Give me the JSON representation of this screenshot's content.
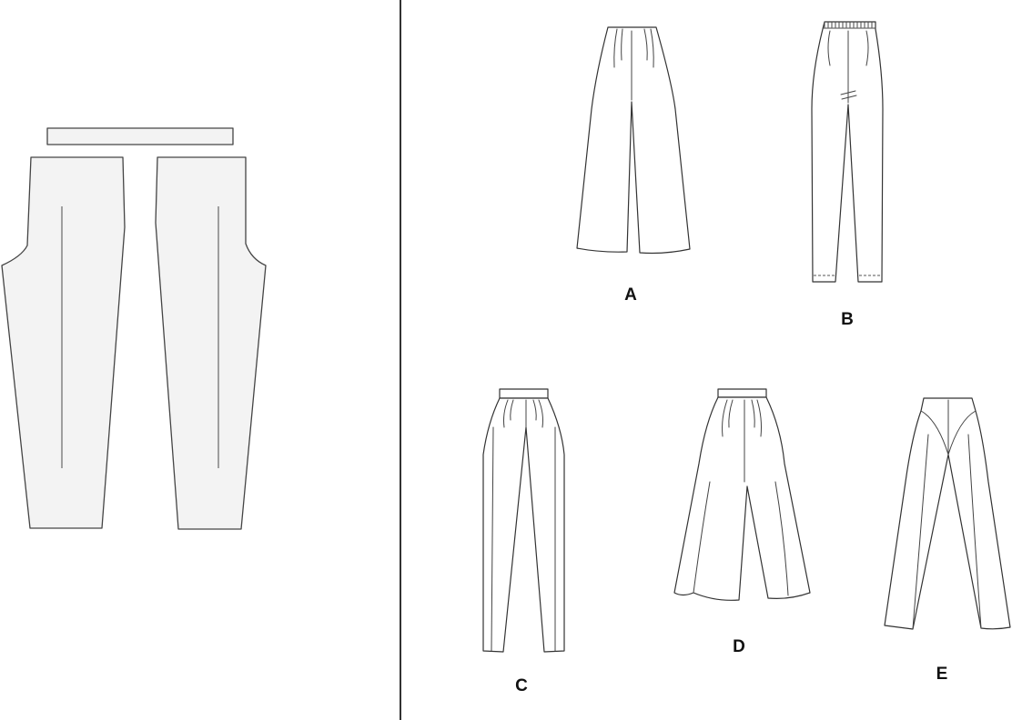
{
  "views": [
    {
      "id": "A",
      "label": "A"
    },
    {
      "id": "B",
      "label": "B"
    },
    {
      "id": "C",
      "label": "C"
    },
    {
      "id": "D",
      "label": "D"
    },
    {
      "id": "E",
      "label": "E"
    }
  ],
  "colors": {
    "pattern_fill": "#f3f3f3",
    "pattern_stroke": "#444444",
    "line": "#333333",
    "background": "#ffffff"
  }
}
